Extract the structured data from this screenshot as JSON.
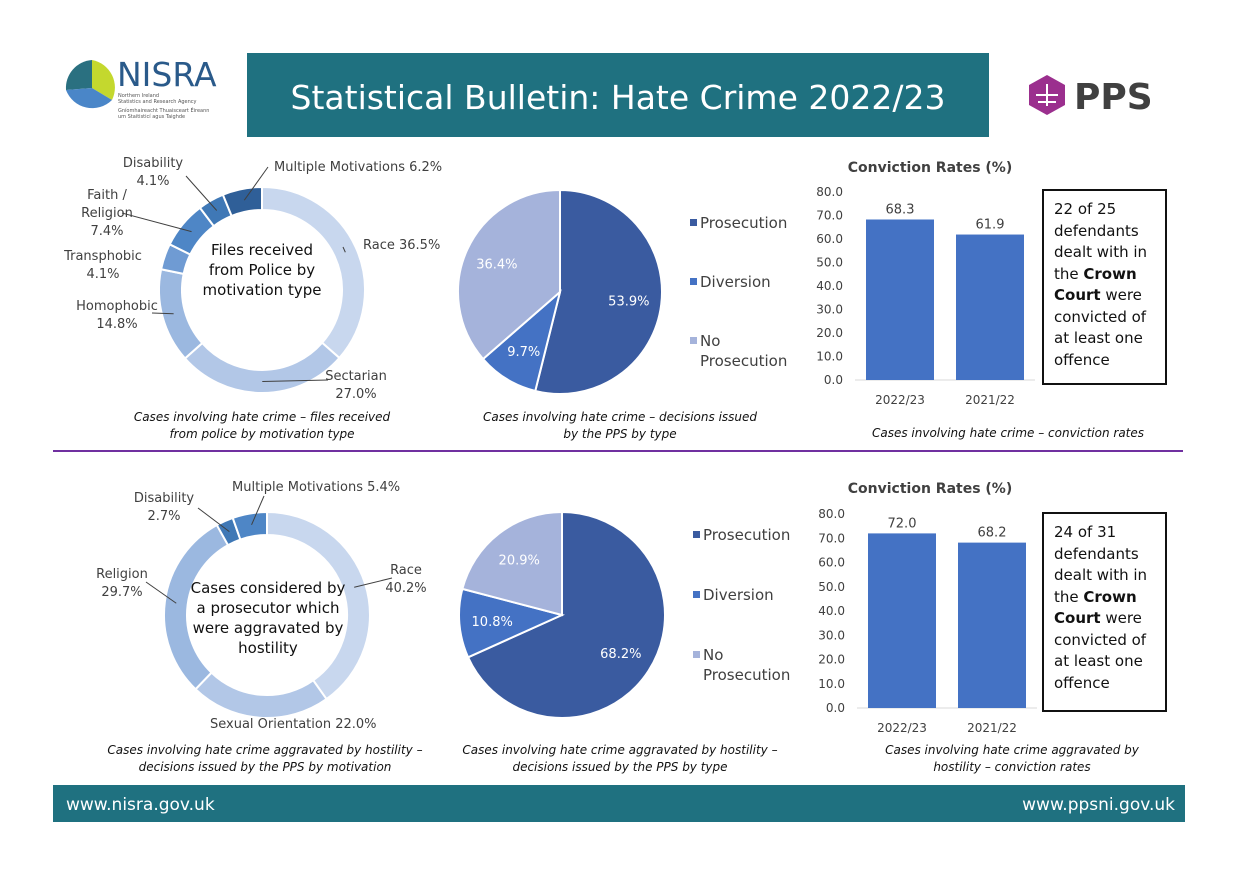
{
  "header": {
    "title": "Statistical Bulletin: Hate Crime 2022/23",
    "nisra_name": "NISRA",
    "nisra_sub": [
      "Northern Ireland",
      "Statistics and Research Agency",
      "Gníomhaireacht Thuaisceart Éireann",
      "um Staitisticí agus Taighde"
    ],
    "pps_name": "PPS"
  },
  "chart_data": [
    {
      "type": "donut",
      "center_text": "Files received from Police by motivation type",
      "caption": "Cases involving hate crime – files received from police by motivation type",
      "categories": [
        "Race",
        "Sectarian",
        "Homophobic",
        "Transphobic",
        "Faith / Religion",
        "Disability",
        "Multiple Motivations"
      ],
      "values": [
        36.5,
        27.0,
        14.8,
        4.1,
        7.4,
        4.1,
        6.2
      ],
      "value_labels": [
        "36.5%",
        "27.0%",
        "14.8%",
        "4.1%",
        "7.4%",
        "4.1%",
        "6.2%"
      ],
      "colors": [
        "#c8d7ee",
        "#b2c7e7",
        "#9bb8e0",
        "#6f9bd3",
        "#4e86c6",
        "#3f78b6",
        "#2f5f98"
      ]
    },
    {
      "type": "pie",
      "caption": "Cases involving hate crime – decisions issued by the PPS by type",
      "categories": [
        "Prosecution",
        "Diversion",
        "No Prosecution"
      ],
      "values": [
        53.9,
        9.7,
        36.4
      ],
      "value_labels": [
        "53.9%",
        "9.7%",
        "36.4%"
      ],
      "colors": [
        "#3a5ba0",
        "#4472c4",
        "#a5b3db"
      ]
    },
    {
      "type": "bar",
      "title": "Conviction Rates (%)",
      "caption": "Cases involving hate crime – conviction rates",
      "categories": [
        "2022/23",
        "2021/22"
      ],
      "values": [
        68.3,
        61.9
      ],
      "color": "#4472c4",
      "ylim": [
        0,
        80
      ],
      "yticks": [
        {
          "value": 0,
          "label": "0.0"
        },
        {
          "value": 10,
          "label": "10.0"
        },
        {
          "value": 20,
          "label": "20.0"
        },
        {
          "value": 30,
          "label": "30.0"
        },
        {
          "value": 40,
          "label": "40.0"
        },
        {
          "value": 50,
          "label": "50.0"
        },
        {
          "value": 60,
          "label": "60.0"
        },
        {
          "value": 70,
          "label": "70.0"
        },
        {
          "value": 80,
          "label": "80.0"
        }
      ],
      "grid": false,
      "note": [
        "22 of 25 defendants dealt with in the ",
        "Crown Court",
        " were convicted of at least one offence"
      ]
    },
    {
      "type": "donut",
      "center_text": "Cases considered by a prosecutor which were aggravated by hostility",
      "caption": "Cases involving hate crime aggravated by hostility – decisions issued by the PPS by motivation",
      "categories": [
        "Race",
        "Sexual Orientation",
        "Religion",
        "Disability",
        "Multiple Motivations"
      ],
      "values": [
        40.2,
        22.0,
        29.7,
        2.7,
        5.4
      ],
      "value_labels": [
        "40.2%",
        "22.0%",
        "29.7%",
        "2.7%",
        "5.4%"
      ],
      "colors": [
        "#c8d7ee",
        "#b2c7e7",
        "#9bb8e0",
        "#3f78b6",
        "#4e86c6"
      ]
    },
    {
      "type": "pie",
      "caption": "Cases involving hate crime aggravated by hostility – decisions issued by the PPS by type",
      "categories": [
        "Prosecution",
        "Diversion",
        "No Prosecution"
      ],
      "values": [
        68.2,
        10.8,
        20.9
      ],
      "value_labels": [
        "68.2%",
        "10.8%",
        "20.9%"
      ],
      "colors": [
        "#3a5ba0",
        "#4472c4",
        "#a5b3db"
      ]
    },
    {
      "type": "bar",
      "title": "Conviction Rates (%)",
      "caption": "Cases involving hate crime aggravated by hostility – conviction rates",
      "categories": [
        "2022/23",
        "2021/22"
      ],
      "values": [
        72.0,
        68.2
      ],
      "value_labels": [
        "72.0",
        "68.2"
      ],
      "color": "#4472c4",
      "ylim": [
        0,
        80
      ],
      "yticks": [
        {
          "value": 0,
          "label": "0.0"
        },
        {
          "value": 10,
          "label": "10.0"
        },
        {
          "value": 20,
          "label": "20.0"
        },
        {
          "value": 30,
          "label": "30.0"
        },
        {
          "value": 40,
          "label": "40.0"
        },
        {
          "value": 50,
          "label": "50.0"
        },
        {
          "value": 60,
          "label": "60.0"
        },
        {
          "value": 70,
          "label": "70.0"
        },
        {
          "value": 80,
          "label": "80.0"
        }
      ],
      "grid": false,
      "note": [
        "24 of 31 defendants dealt with in the ",
        "Crown Court",
        " were convicted of at least one offence"
      ]
    }
  ],
  "footer": {
    "left": "www.nisra.gov.uk",
    "right": "www.ppsni.gov.uk"
  }
}
